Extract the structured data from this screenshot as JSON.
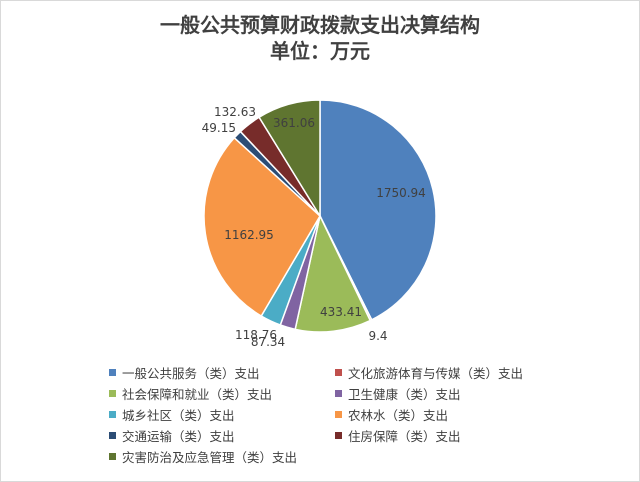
{
  "title": {
    "line1": "一般公共预算财政拨款支出决算结构",
    "line2": "单位：万元"
  },
  "chart_data": {
    "type": "pie",
    "title": "一般公共预算财政拨款支出决算结构",
    "subtitle": "单位：万元",
    "legend_position": "bottom",
    "slices": [
      {
        "name": "一般公共服务（类）支出",
        "value": 1750.94,
        "label": "1750.94",
        "color": "#4f81bd"
      },
      {
        "name": "文化旅游体育与传媒（类）支出",
        "value": 9.4,
        "label": "9.4",
        "color": "#c0504d"
      },
      {
        "name": "社会保障和就业（类）支出",
        "value": 433.41,
        "label": "433.41",
        "color": "#9bbb59"
      },
      {
        "name": "卫生健康（类）支出",
        "value": 87.34,
        "label": "87.34",
        "color": "#8064a2"
      },
      {
        "name": "城乡社区（类）支出",
        "value": 118.76,
        "label": "118.76",
        "color": "#4bacc6"
      },
      {
        "name": "农林水（类）支出",
        "value": 1162.95,
        "label": "1162.95",
        "color": "#f79646"
      },
      {
        "name": "交通运输（类）支出",
        "value": 49.15,
        "label": "49.15",
        "color": "#2c4d75"
      },
      {
        "name": "住房保障（类）支出",
        "value": 132.63,
        "label": "132.63",
        "color": "#772c2a"
      },
      {
        "name": "灾害防治及应急管理（类）支出",
        "value": 361.06,
        "label": "361.06",
        "color": "#5f7530"
      }
    ]
  }
}
